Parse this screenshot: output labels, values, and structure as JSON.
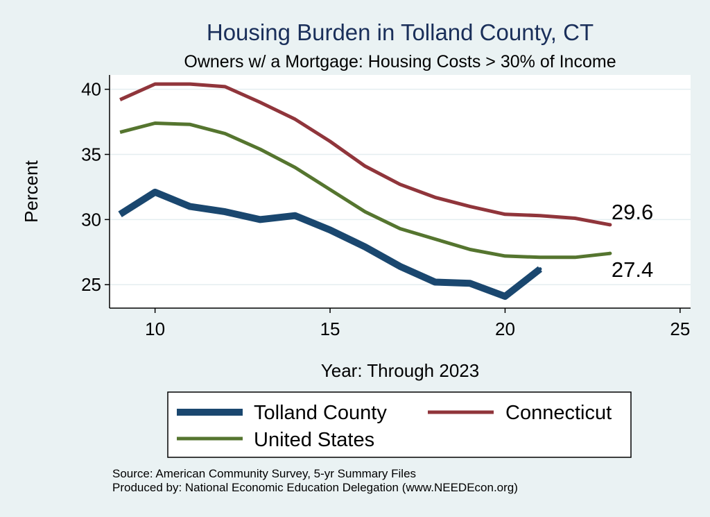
{
  "chart_data": {
    "type": "line",
    "title": "Housing Burden in Tolland County, CT",
    "subtitle": "Owners w/ a Mortgage: Housing Costs > 30% of Income",
    "xlabel": "Year: Through 2023",
    "ylabel": "Percent",
    "xlim": [
      8.7,
      25.3
    ],
    "ylim": [
      23.2,
      41.1
    ],
    "xticks": [
      10,
      15,
      20,
      25
    ],
    "yticks": [
      25,
      30,
      35,
      40
    ],
    "grid": true,
    "legend_position": "bottom",
    "series": [
      {
        "name": "Tolland County",
        "color": "#1a476f",
        "width": "thick",
        "x": [
          9,
          10,
          11,
          12,
          13,
          14,
          15,
          16,
          17,
          18,
          19,
          20,
          21
        ],
        "y": [
          30.4,
          32.1,
          31.0,
          30.6,
          30.0,
          30.3,
          29.2,
          27.9,
          26.4,
          25.2,
          25.1,
          24.1,
          26.2
        ]
      },
      {
        "name": "Connecticut",
        "color": "#90353b",
        "width": "medium",
        "x": [
          9,
          10,
          11,
          12,
          13,
          14,
          15,
          16,
          17,
          18,
          19,
          20,
          21,
          22,
          23
        ],
        "y": [
          39.2,
          40.4,
          40.4,
          40.2,
          39.0,
          37.7,
          36.0,
          34.1,
          32.7,
          31.7,
          31.0,
          30.4,
          30.3,
          30.1,
          29.6
        ]
      },
      {
        "name": "United States",
        "color": "#55752f",
        "width": "medium",
        "x": [
          9,
          10,
          11,
          12,
          13,
          14,
          15,
          16,
          17,
          18,
          19,
          20,
          21,
          22,
          23
        ],
        "y": [
          36.7,
          37.4,
          37.3,
          36.6,
          35.4,
          34.0,
          32.3,
          30.6,
          29.3,
          28.5,
          27.7,
          27.2,
          27.1,
          27.1,
          27.4
        ]
      }
    ],
    "annotations": [
      {
        "text": "29.6",
        "series": "Connecticut",
        "x": 23,
        "y": 29.6
      },
      {
        "text": "27.4",
        "series": "United States",
        "x": 23,
        "y": 27.4
      }
    ]
  },
  "notes": {
    "source": "Source: American Community Survey, 5-yr Summary Files",
    "produced_by": "Produced by: National Economic Education Delegation (www.NEEDEcon.org)"
  }
}
